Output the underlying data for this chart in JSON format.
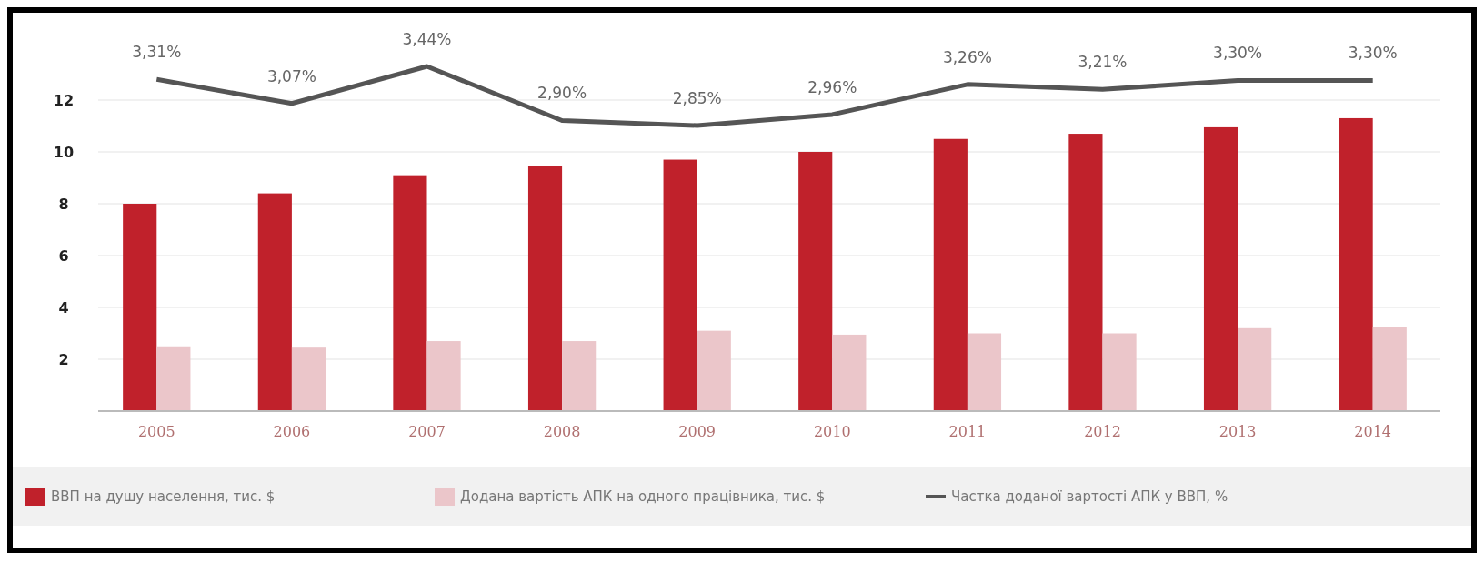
{
  "chart_data": {
    "type": "bar",
    "categories": [
      "2005",
      "2006",
      "2007",
      "2008",
      "2009",
      "2010",
      "2011",
      "2012",
      "2013",
      "2014"
    ],
    "series": [
      {
        "name": "ВВП на душу населення, тис. $",
        "color": "#c0212b",
        "values": [
          8.0,
          8.4,
          9.1,
          9.45,
          9.7,
          10.0,
          10.5,
          10.7,
          10.95,
          11.3
        ]
      },
      {
        "name": "Додана вартість АПК на одного працівника, тис. $",
        "color": "#ebc6ca",
        "values": [
          2.5,
          2.45,
          2.7,
          2.7,
          3.1,
          2.95,
          3.0,
          3.0,
          3.2,
          3.25
        ]
      },
      {
        "name": "Частка доданої вартості АПК у ВВП, %",
        "type": "line",
        "axis": "y2",
        "color": "#555555",
        "values": [
          3.31,
          3.07,
          3.44,
          2.9,
          2.85,
          2.96,
          3.26,
          3.21,
          3.3,
          3.3
        ],
        "value_labels": [
          "3,31%",
          "3,07%",
          "3,44%",
          "2,90%",
          "2,85%",
          "2,96%",
          "3,26%",
          "3,21%",
          "3,30%",
          "3,30%"
        ]
      }
    ],
    "ylim": [
      0,
      12
    ],
    "yticks": [
      2,
      4,
      6,
      8,
      10,
      12
    ],
    "grid": "y",
    "legend": "bottom",
    "marker": "none",
    "line_style": "solid"
  }
}
